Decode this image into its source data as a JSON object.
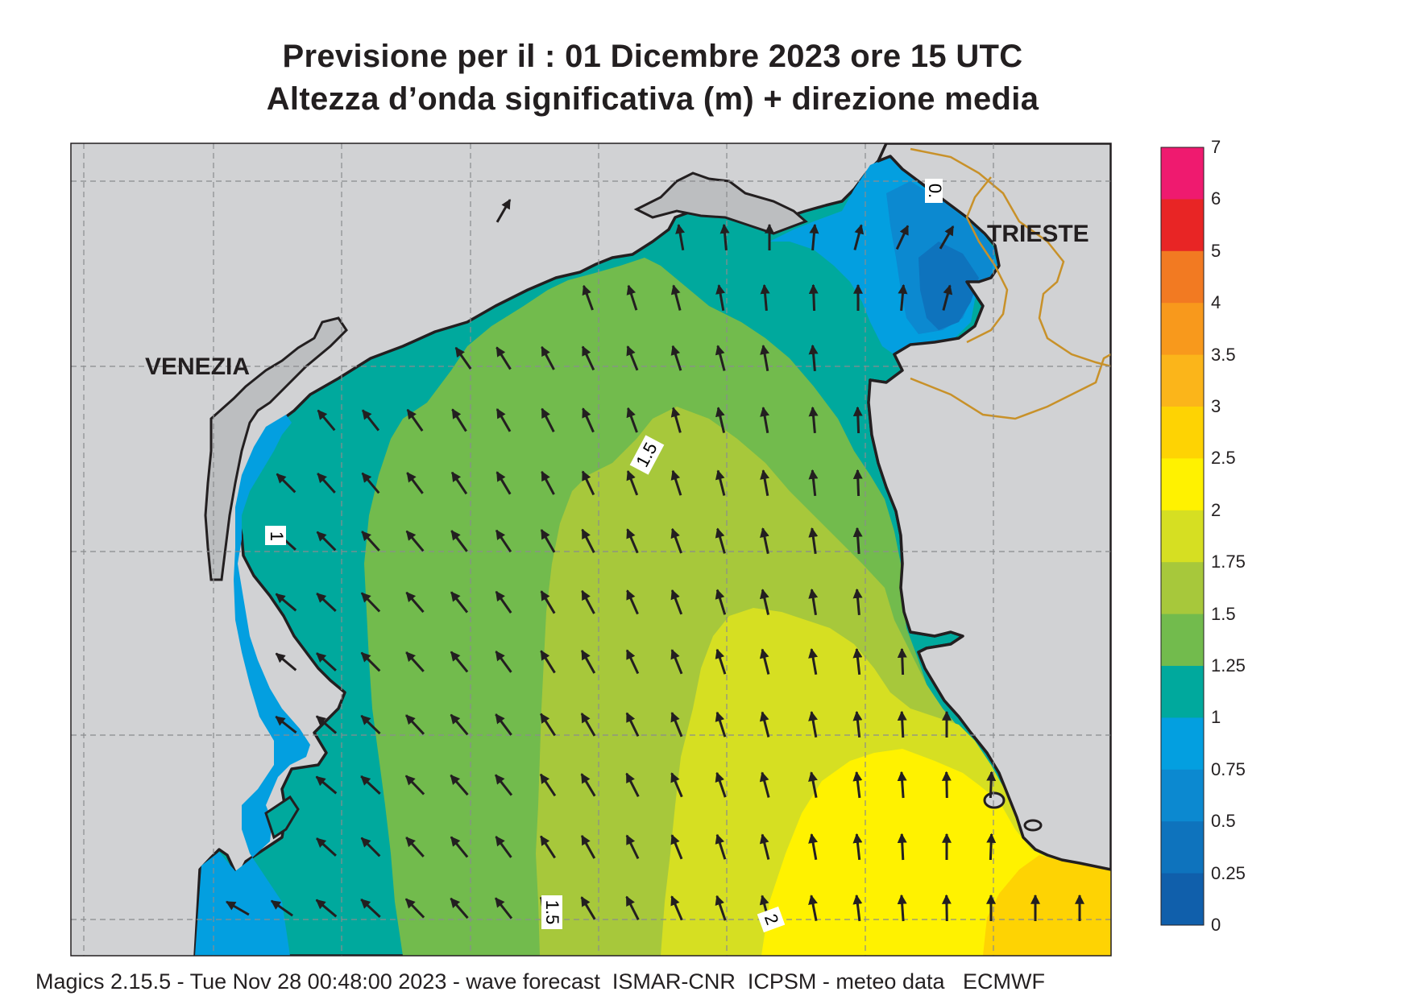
{
  "title": {
    "line1": "Previsione per il  :  01 Dicembre  2023   ore 15 UTC",
    "line2": "Altezza d’onda significativa (m) + direzione media"
  },
  "cities": {
    "venezia": "VENEZIA",
    "trieste": "TRIESTE"
  },
  "contour_labels": [
    "0.",
    "1",
    "1.5",
    "1.5",
    "2"
  ],
  "legend": {
    "labels": [
      "7",
      "6",
      "5",
      "4",
      "3.5",
      "3",
      "2.5",
      "2",
      "1.75",
      "1.5",
      "1.25",
      "1",
      "0.75",
      "0.5",
      "0.25",
      "0"
    ],
    "colors": [
      "#ef1a6f",
      "#e82525",
      "#f27a22",
      "#f8991c",
      "#fbb51a",
      "#fed303",
      "#fff200",
      "#d6df22",
      "#a7c83b",
      "#72bb4d",
      "#00a99d",
      "#039fe0",
      "#0c89d0",
      "#0e73bd",
      "#105fab"
    ]
  },
  "colors": {
    "land": "#d1d2d4",
    "lagoon": "#bcbec0",
    "border": "#c89129"
  },
  "footer": "Magics 2.15.5 - Tue Nov 28 00:48:00 2023 - wave forecast  ISMAR-CNR  ICPSM - meteo data   ECMWF"
}
